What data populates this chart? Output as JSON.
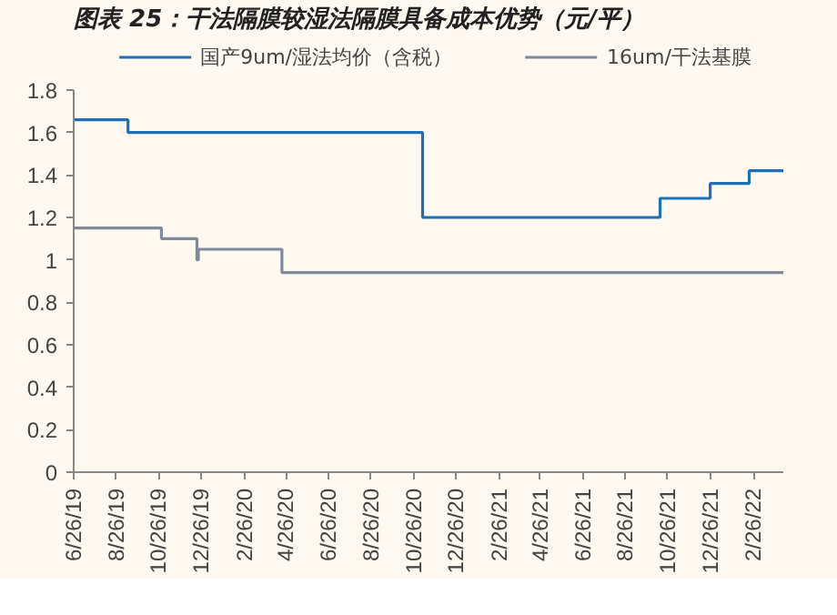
{
  "chart_data": {
    "type": "step",
    "title": "图表 25：干法隔膜较湿法隔膜具备成本优势（元/平）",
    "series": [
      {
        "name": "国产9um/湿法均价（含税）",
        "color": "#1f6fb5",
        "x": [
          "2019-06-26",
          "2019-09-12",
          "2020-11-08",
          "2021-10-15",
          "2021-12-26",
          "2022-02-20",
          "2022-04-10"
        ],
        "values": [
          1.66,
          1.6,
          1.2,
          1.29,
          1.36,
          1.42,
          1.42
        ]
      },
      {
        "name": "16um/干法基膜",
        "color": "#7f8a9a",
        "x": [
          "2019-06-26",
          "2019-10-30",
          "2019-12-20",
          "2019-12-22",
          "2020-04-20",
          "2022-04-10"
        ],
        "values": [
          1.15,
          1.1,
          1.0,
          1.05,
          0.94,
          0.94
        ]
      }
    ],
    "xlim": [
      "2019-06-26",
      "2022-04-10"
    ],
    "xticks": [
      {
        "value": "2019-06-26",
        "label": "6/26/19"
      },
      {
        "value": "2019-08-26",
        "label": "8/26/19"
      },
      {
        "value": "2019-10-26",
        "label": "10/26/19"
      },
      {
        "value": "2019-12-26",
        "label": "12/26/19"
      },
      {
        "value": "2020-02-26",
        "label": "2/26/20"
      },
      {
        "value": "2020-04-26",
        "label": "4/26/20"
      },
      {
        "value": "2020-06-26",
        "label": "6/26/20"
      },
      {
        "value": "2020-08-26",
        "label": "8/26/20"
      },
      {
        "value": "2020-10-26",
        "label": "10/26/20"
      },
      {
        "value": "2020-12-26",
        "label": "12/26/20"
      },
      {
        "value": "2021-02-26",
        "label": "2/26/21"
      },
      {
        "value": "2021-04-26",
        "label": "4/26/21"
      },
      {
        "value": "2021-06-26",
        "label": "6/26/21"
      },
      {
        "value": "2021-08-26",
        "label": "8/26/21"
      },
      {
        "value": "2021-10-26",
        "label": "10/26/21"
      },
      {
        "value": "2021-12-26",
        "label": "12/26/21"
      },
      {
        "value": "2022-02-26",
        "label": "2/26/22"
      }
    ],
    "ylim": [
      0,
      1.8
    ],
    "yticks": [
      0,
      0.2,
      0.4,
      0.6,
      0.8,
      1,
      1.2,
      1.4,
      1.6,
      1.8
    ],
    "legend": "top",
    "grid": false
  }
}
